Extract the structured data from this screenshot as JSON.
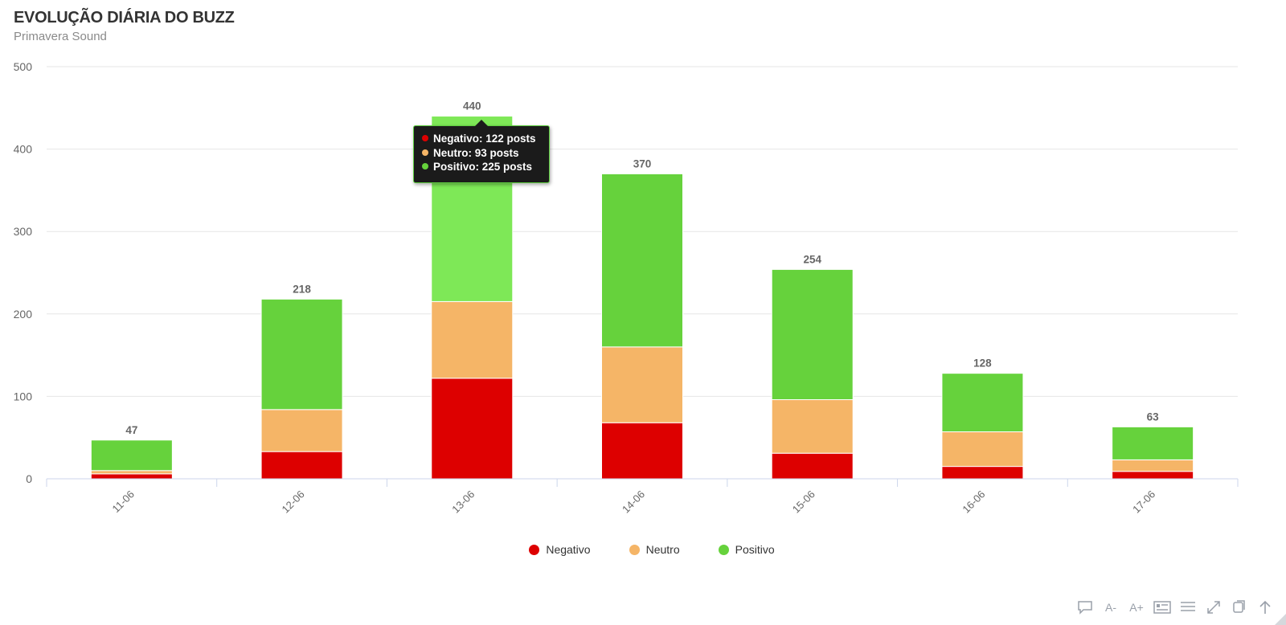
{
  "chart_data": {
    "type": "bar",
    "stacked": true,
    "title": "EVOLUÇÃO DIÁRIA DO BUZZ",
    "subtitle": "Primavera Sound",
    "categories": [
      "11-06",
      "12-06",
      "13-06",
      "14-06",
      "15-06",
      "16-06",
      "17-06"
    ],
    "series": [
      {
        "name": "Negativo",
        "color": "#dd0000",
        "values": [
          6,
          33,
          122,
          68,
          31,
          15,
          9
        ]
      },
      {
        "name": "Neutro",
        "color": "#f5b567",
        "values": [
          4,
          51,
          93,
          92,
          65,
          42,
          14
        ]
      },
      {
        "name": "Positivo",
        "color": "#66d23c",
        "values": [
          37,
          134,
          225,
          210,
          158,
          71,
          40
        ]
      }
    ],
    "totals": [
      "47",
      "218",
      "440",
      "370",
      "254",
      "128",
      "63"
    ],
    "ylim": [
      0,
      500
    ],
    "yticks": [
      "0",
      "100",
      "200",
      "300",
      "400",
      "500"
    ],
    "grid": true,
    "legend_position": "bottom-center",
    "highlighted_category": "13-06",
    "highlight_color": "#7ee857"
  },
  "tooltip": {
    "rows": [
      {
        "text": "Negativo: 122 posts",
        "color": "#dd0000"
      },
      {
        "text": "Neutro: 93 posts",
        "color": "#f5b567"
      },
      {
        "text": "Positivo: 225 posts",
        "color": "#66d23c"
      }
    ]
  },
  "toolbar": {
    "buttons": [
      {
        "icon": "comment-icon",
        "label": ""
      },
      {
        "icon": "font-decrease-icon",
        "label": "A-"
      },
      {
        "icon": "font-increase-icon",
        "label": "A+"
      },
      {
        "icon": "card-icon",
        "label": ""
      },
      {
        "icon": "list-icon",
        "label": ""
      },
      {
        "icon": "expand-icon",
        "label": ""
      },
      {
        "icon": "copy-icon",
        "label": ""
      },
      {
        "icon": "arrow-up-icon",
        "label": ""
      }
    ]
  }
}
